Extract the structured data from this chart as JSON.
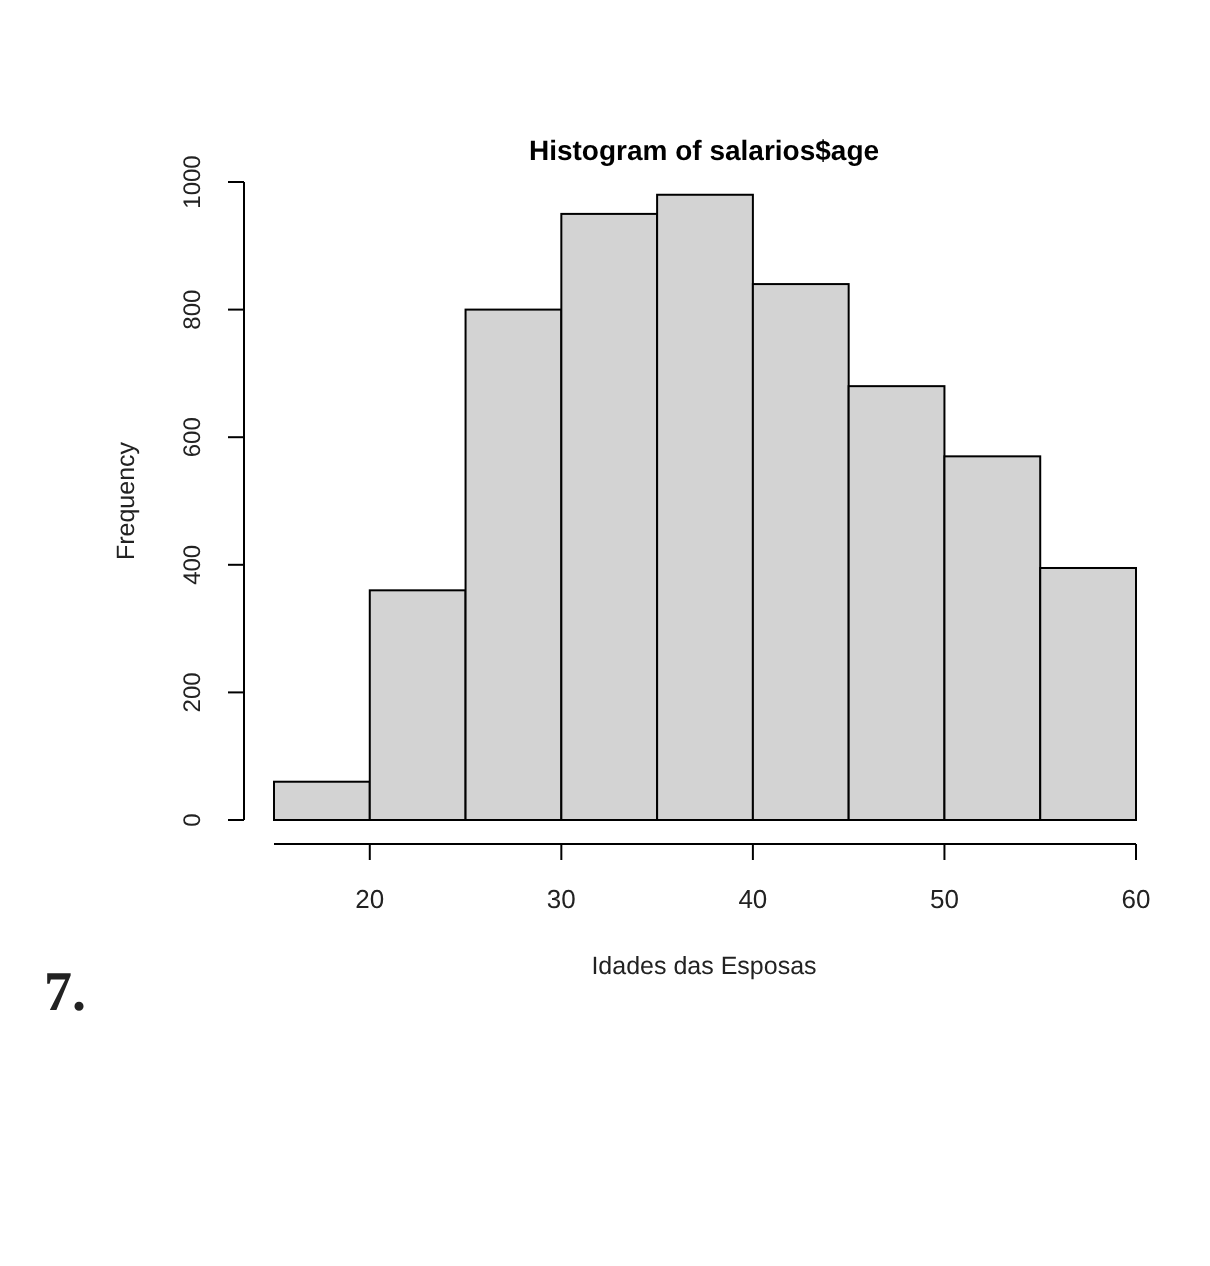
{
  "chart_data": {
    "type": "histogram",
    "title": "Histogram of salarios$age",
    "xlabel": "Idades das Esposas",
    "ylabel": "Frequency",
    "bins": [
      15,
      20,
      25,
      30,
      35,
      40,
      45,
      50,
      55,
      60
    ],
    "values": [
      60,
      360,
      800,
      950,
      980,
      840,
      680,
      570,
      395
    ],
    "color": "#d3d3d3",
    "xlim": [
      15,
      60
    ],
    "xticks": [
      20,
      30,
      40,
      50,
      60
    ],
    "ylim": [
      0,
      1000
    ],
    "yticks": [
      0,
      200,
      400,
      600,
      800,
      1000
    ],
    "annotations": [
      "7."
    ]
  }
}
